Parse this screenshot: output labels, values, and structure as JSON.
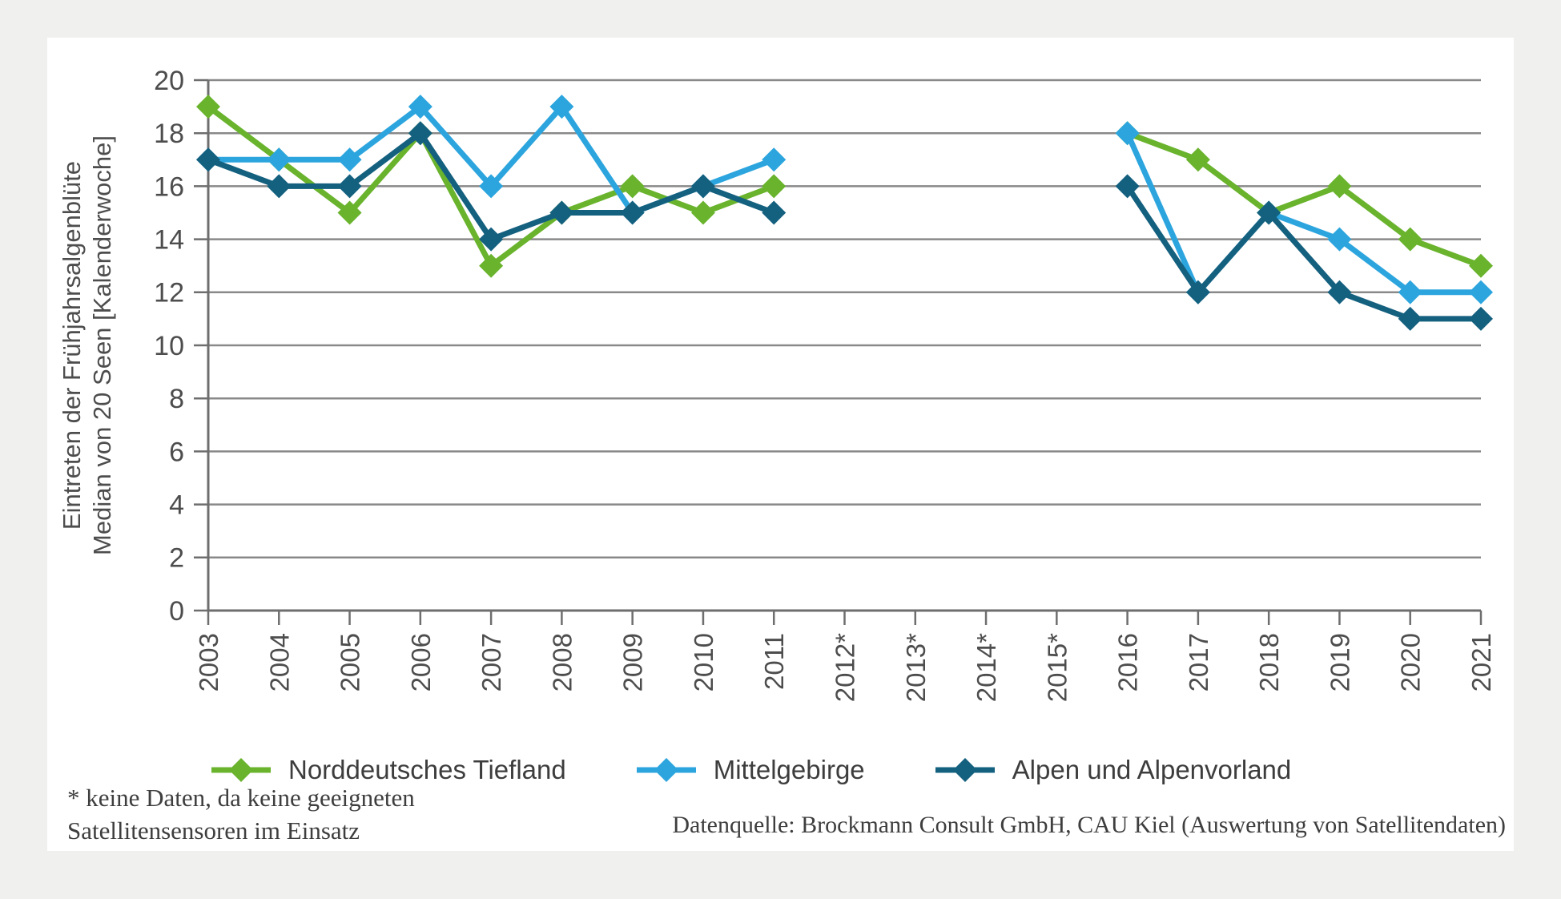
{
  "chart_data": {
    "type": "line",
    "title": "",
    "ylabel_line1": "Eintreten der Frühjahrsalgenblüte",
    "ylabel_line2": "Median von 20 Seen [Kalenderwoche]",
    "xlabel": "",
    "categories": [
      "2003",
      "2004",
      "2005",
      "2006",
      "2007",
      "2008",
      "2009",
      "2010",
      "2011",
      "2012*",
      "2013*",
      "2014*",
      "2015*",
      "2016",
      "2017",
      "2018",
      "2019",
      "2020",
      "2021"
    ],
    "ylim": [
      0,
      20
    ],
    "ytick_step": 2,
    "grid": true,
    "legend_position": "bottom",
    "gap_years_note": "2012-2015 have no data (asterisk years)",
    "series": [
      {
        "name": "Norddeutsches Tiefland",
        "color": "#69b32d",
        "values": [
          19,
          17,
          15,
          18,
          13,
          15,
          16,
          15,
          16,
          null,
          null,
          null,
          null,
          18,
          17,
          15,
          16,
          14,
          13
        ]
      },
      {
        "name": "Mittelgebirge",
        "color": "#2ca5de",
        "values": [
          17,
          17,
          17,
          19,
          16,
          19,
          15,
          16,
          17,
          null,
          null,
          null,
          null,
          18,
          12,
          15,
          14,
          12,
          12
        ]
      },
      {
        "name": "Alpen und Alpenvorland",
        "color": "#14607f",
        "values": [
          17,
          16,
          16,
          18,
          14,
          15,
          15,
          16,
          15,
          null,
          null,
          null,
          null,
          16,
          12,
          15,
          12,
          11,
          11
        ]
      }
    ]
  },
  "footnote": {
    "line1": "* keine Daten, da keine geeigneten",
    "line2": "Satellitensensoren im Einsatz"
  },
  "source": {
    "text": "Datenquelle: Brockmann Consult GmbH, CAU Kiel (Auswertung von Satellitendaten)"
  },
  "colors": {
    "page_background": "#f0f0ef",
    "card_background": "#ffffff",
    "gridline": "#898989",
    "axis": "#6e6e6e",
    "tick_text": "#4d4d4d",
    "legend_text": "#3d3d3d",
    "footnote_text": "#3e3e3e"
  }
}
